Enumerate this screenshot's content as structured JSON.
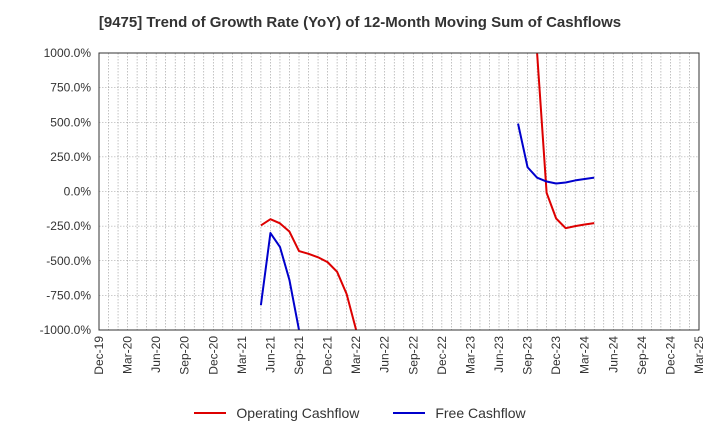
{
  "title": "[9475]  Trend of Growth Rate (YoY) of 12-Month Moving Sum of Cashflows",
  "chart_data": {
    "type": "line",
    "title": "[9475]  Trend of Growth Rate (YoY) of 12-Month Moving Sum of Cashflows",
    "xlabel": "",
    "ylabel": "",
    "ylim": [
      -1000,
      1000
    ],
    "y_ticks": [
      "1000.0%",
      "750.0%",
      "500.0%",
      "250.0%",
      "0.0%",
      "-250.0%",
      "-500.0%",
      "-750.0%",
      "-1000.0%"
    ],
    "y_tick_values": [
      1000,
      750,
      500,
      250,
      0,
      -250,
      -500,
      -750,
      -1000
    ],
    "x_tick_labels": [
      "Dec-19",
      "Mar-20",
      "Jun-20",
      "Sep-20",
      "Dec-20",
      "Mar-21",
      "Jun-21",
      "Sep-21",
      "Dec-21",
      "Mar-22",
      "Jun-22",
      "Sep-22",
      "Dec-22",
      "Mar-23",
      "Jun-23",
      "Sep-23",
      "Dec-23",
      "Mar-24",
      "Jun-24",
      "Sep-24",
      "Dec-24",
      "Mar-25"
    ],
    "x_range": [
      "2019-12",
      "2025-03"
    ],
    "grid": true,
    "legend_position": "bottom",
    "series": [
      {
        "name": "Operating Cashflow",
        "color": "#dd0000",
        "segments": [
          [
            {
              "x": "2021-05",
              "y": -245
            },
            {
              "x": "2021-06",
              "y": -200
            },
            {
              "x": "2021-07",
              "y": -230
            },
            {
              "x": "2021-08",
              "y": -290
            },
            {
              "x": "2021-09",
              "y": -430
            },
            {
              "x": "2021-10",
              "y": -450
            },
            {
              "x": "2021-11",
              "y": -475
            },
            {
              "x": "2021-12",
              "y": -510
            },
            {
              "x": "2022-01",
              "y": -580
            },
            {
              "x": "2022-02",
              "y": -740
            },
            {
              "x": "2022-03",
              "y": -1000
            }
          ],
          [
            {
              "x": "2023-10",
              "y": 1000
            },
            {
              "x": "2023-11",
              "y": -10
            },
            {
              "x": "2023-12",
              "y": -195
            },
            {
              "x": "2024-01",
              "y": -265
            },
            {
              "x": "2024-02",
              "y": -250
            },
            {
              "x": "2024-03",
              "y": -238
            },
            {
              "x": "2024-04",
              "y": -228
            }
          ]
        ]
      },
      {
        "name": "Free Cashflow",
        "color": "#0000cc",
        "segments": [
          [
            {
              "x": "2021-05",
              "y": -820
            },
            {
              "x": "2021-06",
              "y": -300
            },
            {
              "x": "2021-07",
              "y": -400
            },
            {
              "x": "2021-08",
              "y": -640
            },
            {
              "x": "2021-09",
              "y": -1000
            }
          ],
          [
            {
              "x": "2023-08",
              "y": 490
            },
            {
              "x": "2023-09",
              "y": 175
            },
            {
              "x": "2023-10",
              "y": 100
            },
            {
              "x": "2023-11",
              "y": 72
            },
            {
              "x": "2023-12",
              "y": 58
            },
            {
              "x": "2024-01",
              "y": 65
            },
            {
              "x": "2024-02",
              "y": 80
            },
            {
              "x": "2024-03",
              "y": 90
            },
            {
              "x": "2024-04",
              "y": 100
            }
          ]
        ]
      }
    ]
  }
}
